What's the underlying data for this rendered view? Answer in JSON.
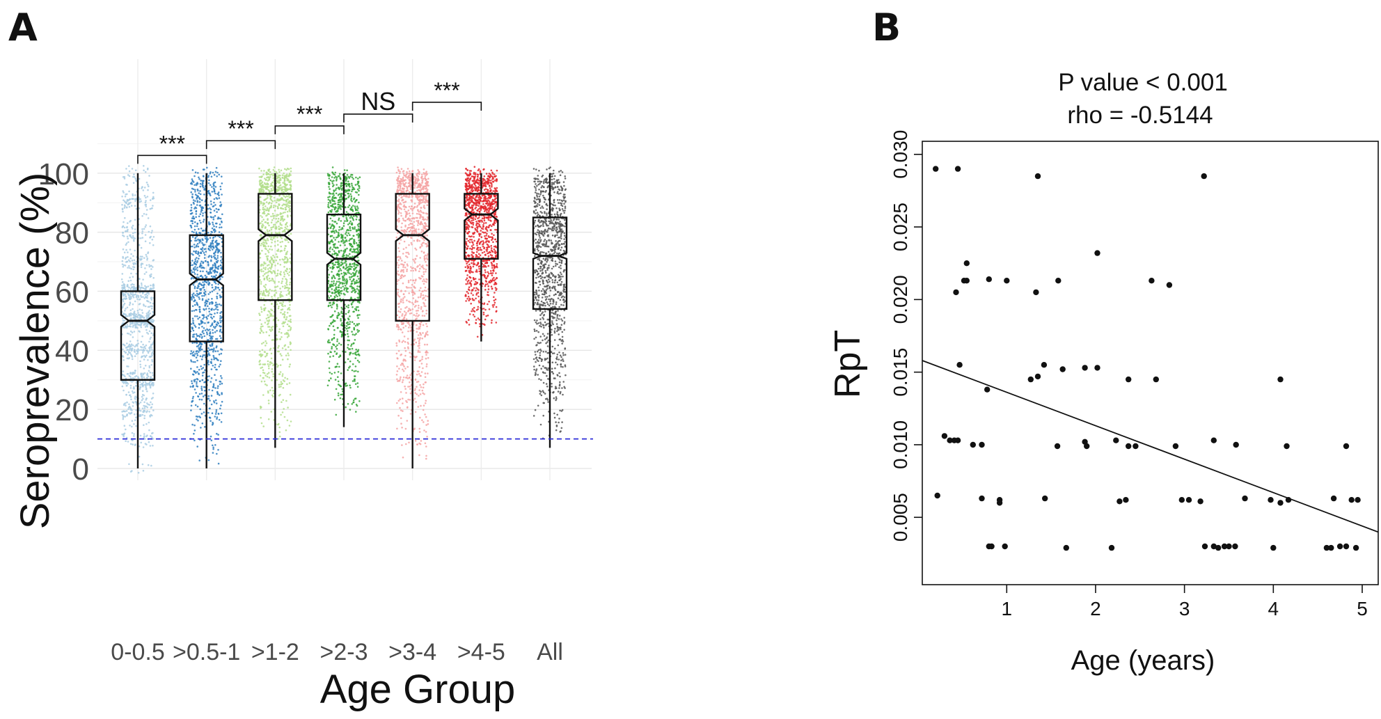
{
  "panel_labels": {
    "a": "A",
    "b": "B"
  },
  "chart_data": [
    {
      "type": "boxplot",
      "panel": "A",
      "title": "",
      "xlabel": "Age Group",
      "ylabel": "Seroprevalence (%)",
      "ylim": [
        -4,
        128
      ],
      "yticks": [
        0,
        20,
        40,
        60,
        80,
        100
      ],
      "grid": true,
      "notched": true,
      "reference_line": {
        "value": 10,
        "style": "dashed",
        "color": "#2b2bd9"
      },
      "categories": [
        "0-0.5",
        ">0.5-1",
        ">1-2",
        ">2-3",
        ">3-4",
        ">4-5",
        "All"
      ],
      "colors": [
        "#a9cce3",
        "#2f7fbf",
        "#b3de8c",
        "#37a638",
        "#f5a3a3",
        "#e3262b",
        "#555555"
      ],
      "boxes": [
        {
          "min": 0,
          "q1": 30,
          "median": 50,
          "q3": 60,
          "max": 100,
          "notch_lo": 48,
          "notch_hi": 52
        },
        {
          "min": 0,
          "q1": 43,
          "median": 64,
          "q3": 79,
          "max": 100,
          "notch_lo": 62,
          "notch_hi": 66
        },
        {
          "min": 7,
          "q1": 57,
          "median": 79,
          "q3": 93,
          "max": 100,
          "notch_lo": 77,
          "notch_hi": 81
        },
        {
          "min": 14,
          "q1": 57,
          "median": 71,
          "q3": 86,
          "max": 100,
          "notch_lo": 69,
          "notch_hi": 73
        },
        {
          "min": 0,
          "q1": 50,
          "median": 79,
          "q3": 93,
          "max": 100,
          "notch_lo": 77,
          "notch_hi": 81
        },
        {
          "min": 43,
          "q1": 71,
          "median": 86,
          "q3": 93,
          "max": 100,
          "notch_lo": 84,
          "notch_hi": 88
        },
        {
          "min": 7,
          "q1": 54,
          "median": 72,
          "q3": 85,
          "max": 100,
          "notch_lo": 71,
          "notch_hi": 73
        }
      ],
      "comparisons": [
        {
          "from": 0,
          "to": 1,
          "height": 106,
          "label": "***"
        },
        {
          "from": 1,
          "to": 2,
          "height": 111,
          "label": "***"
        },
        {
          "from": 2,
          "to": 3,
          "height": 116,
          "label": "***"
        },
        {
          "from": 3,
          "to": 4,
          "height": 120,
          "label": "NS"
        },
        {
          "from": 4,
          "to": 5,
          "height": 124,
          "label": "***"
        }
      ]
    },
    {
      "type": "scatter",
      "panel": "B",
      "title": "P value < 0.001",
      "subtitle": "rho = -0.5144",
      "xlabel": "Age (years)",
      "ylabel": "RpT",
      "xlim": [
        0.05,
        5.0
      ],
      "ylim": [
        0.0018,
        0.0309
      ],
      "xticks": [
        1,
        2,
        3,
        4,
        5
      ],
      "yticks": [
        0.005,
        0.01,
        0.015,
        0.02,
        0.025,
        0.03
      ],
      "ytick_labels": [
        "0.005",
        "0.010",
        "0.015",
        "0.020",
        "0.025",
        "0.030"
      ],
      "grid": false,
      "regression_line": {
        "x": [
          0.05,
          5.0
        ],
        "y": [
          0.0158,
          0.0044
        ]
      },
      "points": [
        [
          0.2,
          0.029
        ],
        [
          0.45,
          0.029
        ],
        [
          1.35,
          0.0285
        ],
        [
          3.22,
          0.0285
        ],
        [
          0.55,
          0.0225
        ],
        [
          0.52,
          0.0213
        ],
        [
          0.55,
          0.0213
        ],
        [
          0.43,
          0.0205
        ],
        [
          0.8,
          0.0214
        ],
        [
          1.0,
          0.0213
        ],
        [
          1.33,
          0.0205
        ],
        [
          1.58,
          0.0213
        ],
        [
          2.02,
          0.0232
        ],
        [
          2.63,
          0.0213
        ],
        [
          2.83,
          0.021
        ],
        [
          0.47,
          0.0155
        ],
        [
          1.27,
          0.0145
        ],
        [
          1.35,
          0.0147
        ],
        [
          1.42,
          0.0155
        ],
        [
          1.63,
          0.0152
        ],
        [
          1.88,
          0.0153
        ],
        [
          2.02,
          0.0153
        ],
        [
          2.37,
          0.0145
        ],
        [
          2.68,
          0.0145
        ],
        [
          4.08,
          0.0145
        ],
        [
          0.78,
          0.0138
        ],
        [
          0.3,
          0.0106
        ],
        [
          0.36,
          0.0103
        ],
        [
          0.41,
          0.0103
        ],
        [
          0.45,
          0.0103
        ],
        [
          0.62,
          0.01
        ],
        [
          0.72,
          0.01
        ],
        [
          1.57,
          0.0099
        ],
        [
          1.88,
          0.0102
        ],
        [
          1.9,
          0.0099
        ],
        [
          2.23,
          0.0103
        ],
        [
          2.37,
          0.0099
        ],
        [
          2.45,
          0.0099
        ],
        [
          2.9,
          0.0099
        ],
        [
          3.33,
          0.0103
        ],
        [
          3.58,
          0.01
        ],
        [
          4.15,
          0.0099
        ],
        [
          4.82,
          0.0099
        ],
        [
          0.22,
          0.0065
        ],
        [
          0.72,
          0.0063
        ],
        [
          0.92,
          0.0062
        ],
        [
          0.92,
          0.006
        ],
        [
          1.43,
          0.0063
        ],
        [
          2.27,
          0.0061
        ],
        [
          2.34,
          0.0062
        ],
        [
          2.97,
          0.0062
        ],
        [
          3.05,
          0.0062
        ],
        [
          3.18,
          0.0061
        ],
        [
          3.68,
          0.0063
        ],
        [
          3.97,
          0.0062
        ],
        [
          4.08,
          0.006
        ],
        [
          4.17,
          0.0062
        ],
        [
          4.68,
          0.0063
        ],
        [
          4.88,
          0.0062
        ],
        [
          4.95,
          0.0062
        ],
        [
          0.8,
          0.003
        ],
        [
          0.83,
          0.003
        ],
        [
          0.98,
          0.003
        ],
        [
          1.67,
          0.0029
        ],
        [
          2.18,
          0.0029
        ],
        [
          3.23,
          0.003
        ],
        [
          3.33,
          0.003
        ],
        [
          3.38,
          0.0029
        ],
        [
          3.45,
          0.003
        ],
        [
          3.5,
          0.003
        ],
        [
          3.57,
          0.003
        ],
        [
          4.0,
          0.0029
        ],
        [
          4.6,
          0.0029
        ],
        [
          4.65,
          0.0029
        ],
        [
          4.75,
          0.003
        ],
        [
          4.82,
          0.003
        ],
        [
          4.93,
          0.0029
        ]
      ]
    }
  ]
}
